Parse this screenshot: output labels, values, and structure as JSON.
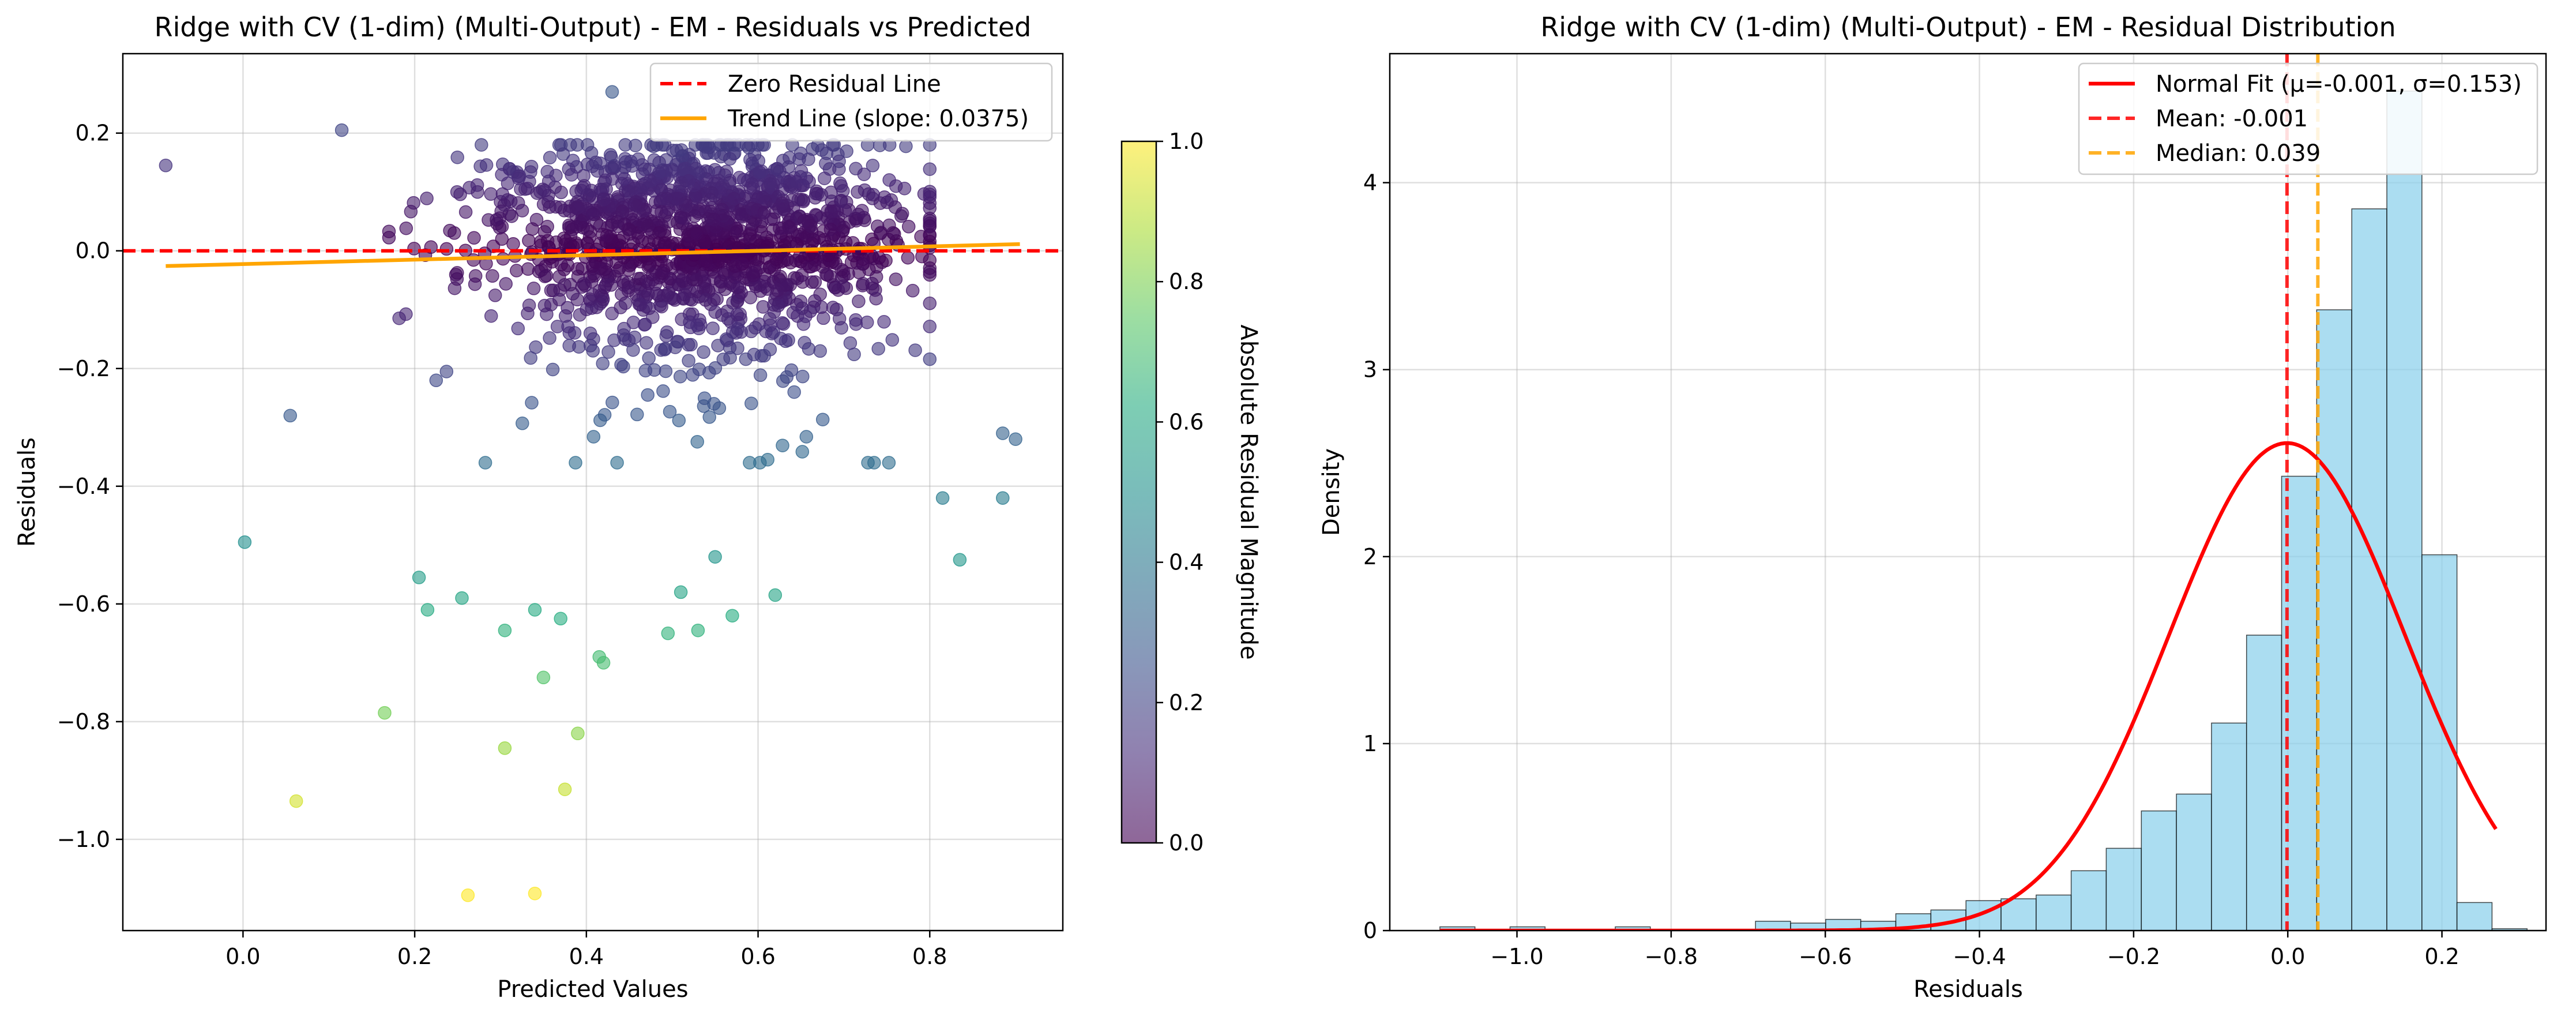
{
  "chart_data": [
    {
      "type": "scatter",
      "title": "Ridge with CV (1-dim) (Multi-Output) - EM - Residuals vs Predicted",
      "xlabel": "Predicted Values",
      "ylabel": "Residuals",
      "xlim": [
        -0.14,
        0.955
      ],
      "ylim": [
        -1.155,
        0.335
      ],
      "xticks": [
        0.0,
        0.2,
        0.4,
        0.6,
        0.8
      ],
      "yticks": [
        -1.0,
        -0.8,
        -0.6,
        -0.4,
        -0.2,
        0.0,
        0.2
      ],
      "grid": true,
      "legend_position": "top-right",
      "legend": [
        {
          "label": "Zero Residual Line",
          "color": "#ff0000",
          "style": "dashed"
        },
        {
          "label": "Trend Line (slope: 0.0375)",
          "color": "#ffa500",
          "style": "solid"
        }
      ],
      "zero_line": {
        "y": 0.0
      },
      "trend_line": {
        "slope": 0.0375,
        "intercept": -0.0225,
        "x": [
          -0.09,
          0.905
        ]
      },
      "colormap": "viridis",
      "colorbar": {
        "label": "Absolute Residual Magnitude",
        "range": [
          0.0,
          1.0
        ],
        "ticks": [
          0.0,
          0.2,
          0.4,
          0.6,
          0.8,
          1.0
        ]
      },
      "notable_points": [
        {
          "x": -0.09,
          "y": 0.145
        },
        {
          "x": 0.115,
          "y": 0.205
        },
        {
          "x": 0.43,
          "y": 0.27
        },
        {
          "x": 0.055,
          "y": -0.28
        },
        {
          "x": 0.002,
          "y": -0.495
        },
        {
          "x": 0.205,
          "y": -0.555
        },
        {
          "x": 0.215,
          "y": -0.61
        },
        {
          "x": 0.255,
          "y": -0.59
        },
        {
          "x": 0.165,
          "y": -0.785
        },
        {
          "x": 0.062,
          "y": -0.935
        },
        {
          "x": 0.262,
          "y": -1.095
        },
        {
          "x": 0.34,
          "y": -1.092
        },
        {
          "x": 0.305,
          "y": -0.845
        },
        {
          "x": 0.39,
          "y": -0.82
        },
        {
          "x": 0.375,
          "y": -0.915
        },
        {
          "x": 0.35,
          "y": -0.725
        },
        {
          "x": 0.415,
          "y": -0.69
        },
        {
          "x": 0.42,
          "y": -0.7
        },
        {
          "x": 0.305,
          "y": -0.645
        },
        {
          "x": 0.34,
          "y": -0.61
        },
        {
          "x": 0.37,
          "y": -0.625
        },
        {
          "x": 0.495,
          "y": -0.65
        },
        {
          "x": 0.53,
          "y": -0.645
        },
        {
          "x": 0.51,
          "y": -0.58
        },
        {
          "x": 0.57,
          "y": -0.62
        },
        {
          "x": 0.62,
          "y": -0.585
        },
        {
          "x": 0.55,
          "y": -0.52
        },
        {
          "x": 0.835,
          "y": -0.525
        },
        {
          "x": 0.885,
          "y": -0.42
        },
        {
          "x": 0.815,
          "y": -0.42
        },
        {
          "x": 0.885,
          "y": -0.31
        },
        {
          "x": 0.9,
          "y": -0.32
        }
      ]
    },
    {
      "type": "bar",
      "title": "Ridge with CV (1-dim) (Multi-Output) - EM - Residual Distribution",
      "xlabel": "Residuals",
      "ylabel": "Density",
      "xlim": [
        -1.165,
        0.335
      ],
      "ylim": [
        0.0,
        4.69
      ],
      "xticks": [
        -1.0,
        -0.8,
        -0.6,
        -0.4,
        -0.2,
        0.0,
        0.2
      ],
      "yticks": [
        0,
        1,
        2,
        3,
        4
      ],
      "grid": true,
      "legend_position": "top-right",
      "legend": [
        {
          "label": "Normal Fit (μ=-0.001, σ=0.153)",
          "color": "#ff0000",
          "style": "solid"
        },
        {
          "label": "Mean: -0.001",
          "color": "#ff0000",
          "style": "dashed"
        },
        {
          "label": "Median: 0.039",
          "color": "#ffa500",
          "style": "dashed"
        }
      ],
      "bin_start": -1.1,
      "bin_width": 0.0455,
      "densities": [
        0.02,
        0.0,
        0.02,
        0.0,
        0.0,
        0.02,
        0.0,
        0.0,
        0.0,
        0.05,
        0.04,
        0.06,
        0.05,
        0.09,
        0.11,
        0.16,
        0.17,
        0.19,
        0.32,
        0.44,
        0.64,
        0.73,
        1.11,
        1.58,
        2.43,
        3.32,
        3.86,
        4.49,
        2.01,
        0.15,
        0.01
      ],
      "normal_fit": {
        "mu": -0.001,
        "sigma": 0.153,
        "x_range": [
          -1.1,
          0.27
        ]
      },
      "mean_line": -0.001,
      "median_line": 0.039
    }
  ]
}
